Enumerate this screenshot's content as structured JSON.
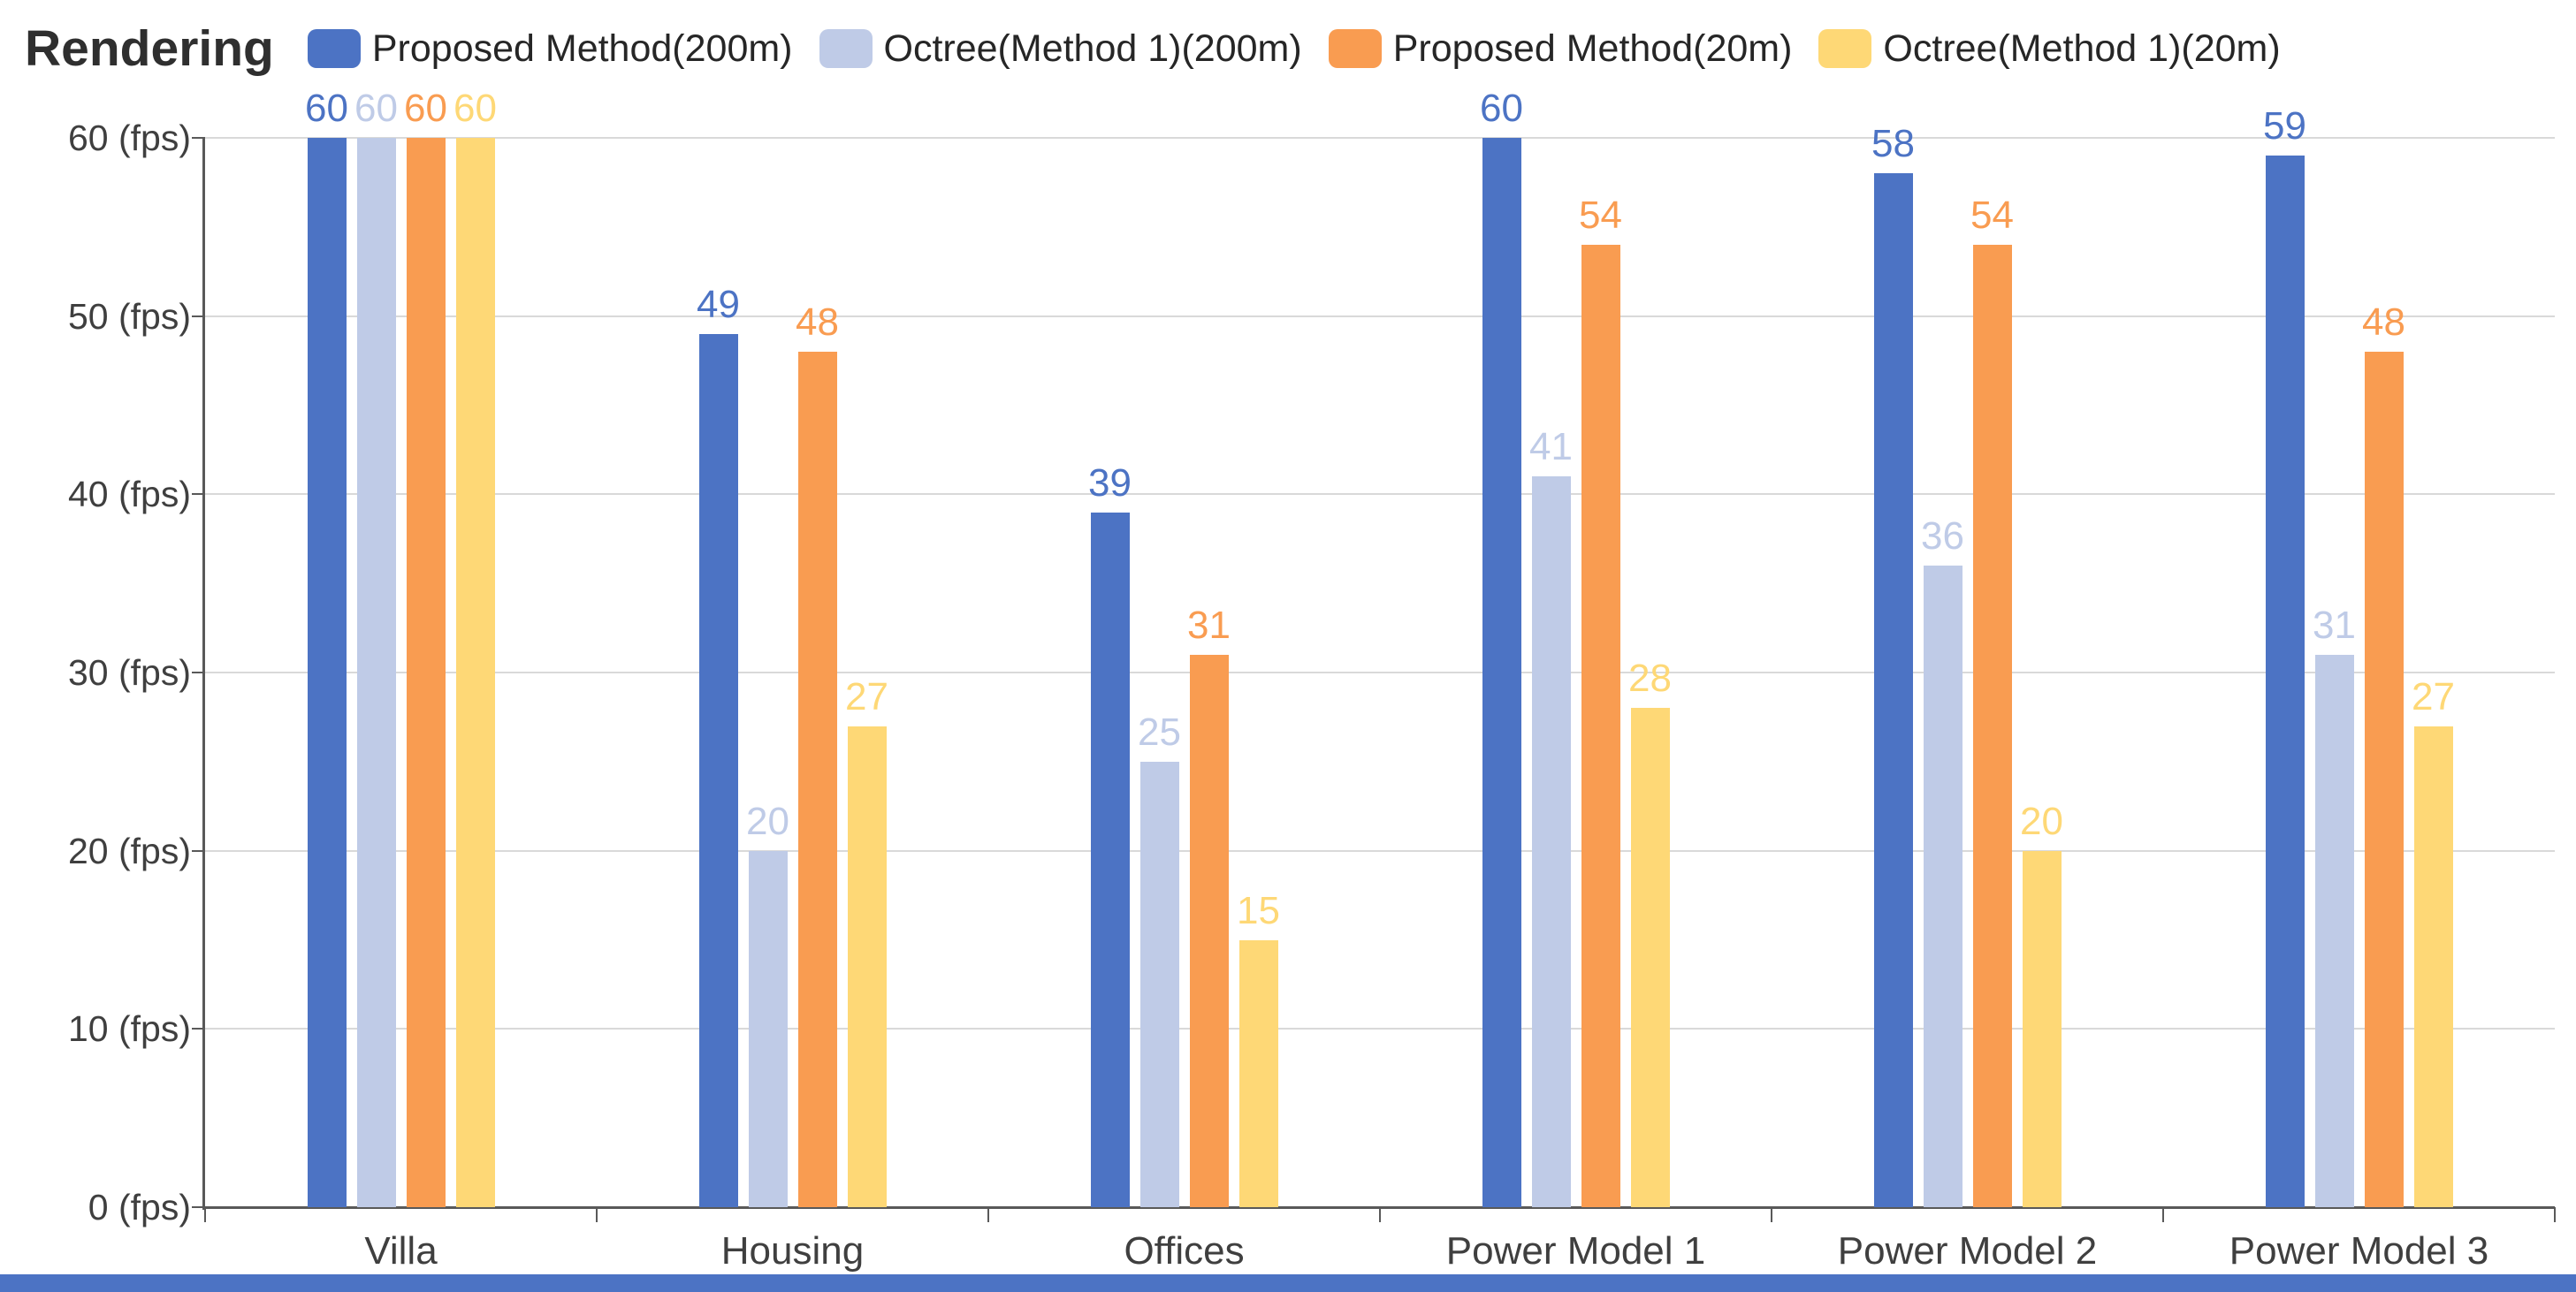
{
  "header": {
    "title": "Rendering"
  },
  "chart_data": {
    "type": "bar",
    "title": "Rendering",
    "categories": [
      "Villa",
      "Housing",
      "Offices",
      "Power Model 1",
      "Power Model 2",
      "Power Model 3"
    ],
    "series": [
      {
        "name": "Proposed Method(200m)",
        "color": "#4C73C4",
        "values": [
          60,
          49,
          39,
          60,
          58,
          59
        ]
      },
      {
        "name": "Octree(Method 1)(200m)",
        "color": "#BFCBE7",
        "values": [
          60,
          20,
          25,
          41,
          36,
          31
        ]
      },
      {
        "name": "Proposed Method(20m)",
        "color": "#F99C51",
        "values": [
          60,
          48,
          31,
          54,
          54,
          48
        ]
      },
      {
        "name": "Octree(Method 1)(20m)",
        "color": "#FED876",
        "values": [
          60,
          27,
          15,
          28,
          20,
          27
        ]
      }
    ],
    "ylim": [
      0,
      60
    ],
    "y_tick_step": 10,
    "y_tick_labels": [
      "0 (fps)",
      "10 (fps)",
      "20 (fps)",
      "30 (fps)",
      "40 (fps)",
      "50 (fps)",
      "60 (fps)"
    ],
    "xlabel": "",
    "ylabel": "fps",
    "grid": true,
    "legend_position": "top",
    "value_labels": true
  },
  "style_colors": {
    "gridline": "#D9D9D9",
    "axis": "#595959",
    "tick_text": "#3F3F3F",
    "title_text": "#2F2F2F",
    "bottom_strip": "#4C73C4"
  }
}
